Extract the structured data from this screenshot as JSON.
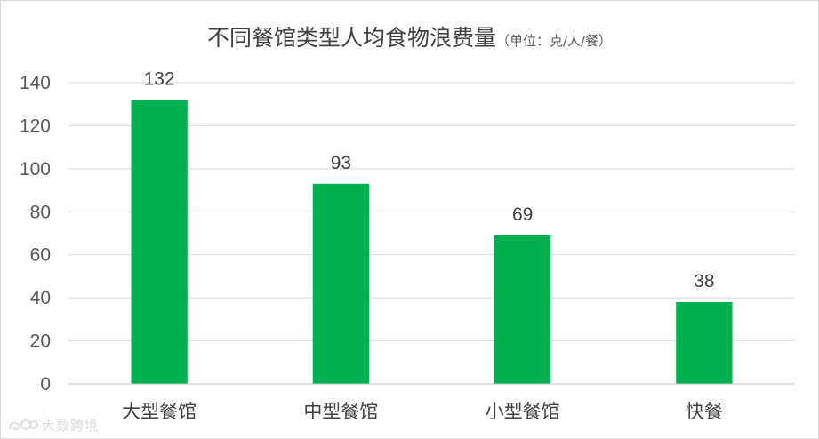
{
  "chart_data": {
    "type": "bar",
    "title": "不同餐馆类型人均食物浪费量",
    "subtitle": "（单位：克/人/餐）",
    "categories": [
      "大型餐馆",
      "中型餐馆",
      "小型餐馆",
      "快餐"
    ],
    "values": [
      132,
      93,
      69,
      38
    ],
    "ylim": [
      0,
      140
    ],
    "yticks": [
      0,
      20,
      40,
      60,
      80,
      100,
      120,
      140
    ],
    "xlabel": "",
    "ylabel": "",
    "grid": true,
    "legend": "none",
    "bar_color": "#00b050",
    "grid_color": "#d9d9d9"
  },
  "watermark": {
    "text": "大数跨境",
    "logo": "dashuju-logo-icon"
  }
}
